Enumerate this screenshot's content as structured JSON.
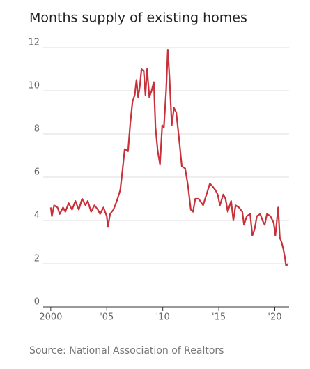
{
  "chart_data": {
    "type": "line",
    "title": "Months supply of existing homes",
    "source": "Source: National Association of Realtors",
    "x": [
      2000.0,
      2000.1,
      2000.3,
      2000.6,
      2000.8,
      2001.1,
      2001.3,
      2001.6,
      2001.9,
      2002.2,
      2002.5,
      2002.8,
      2003.1,
      2003.3,
      2003.6,
      2003.9,
      2004.2,
      2004.4,
      2004.7,
      2005.0,
      2005.1,
      2005.3,
      2005.6,
      2005.9,
      2006.2,
      2006.4,
      2006.6,
      2006.9,
      2007.1,
      2007.3,
      2007.5,
      2007.65,
      2007.8,
      2007.95,
      2008.1,
      2008.3,
      2008.45,
      2008.6,
      2008.8,
      2009.0,
      2009.2,
      2009.35,
      2009.55,
      2009.75,
      2009.95,
      2010.1,
      2010.3,
      2010.45,
      2010.6,
      2010.8,
      2011.0,
      2011.2,
      2011.45,
      2011.7,
      2012.0,
      2012.25,
      2012.5,
      2012.7,
      2012.9,
      2013.2,
      2013.6,
      2013.9,
      2014.2,
      2014.4,
      2014.7,
      2014.9,
      2015.1,
      2015.4,
      2015.6,
      2015.8,
      2016.1,
      2016.3,
      2016.5,
      2016.8,
      2017.1,
      2017.25,
      2017.5,
      2017.8,
      2018.0,
      2018.2,
      2018.4,
      2018.7,
      2018.9,
      2019.1,
      2019.3,
      2019.6,
      2019.9,
      2020.05,
      2020.3,
      2020.45,
      2020.6,
      2020.75,
      2020.9,
      2021.0,
      2021.2
    ],
    "series": [
      {
        "name": "Months supply",
        "color": "#c8313a",
        "values": [
          4.6,
          4.2,
          4.7,
          4.6,
          4.3,
          4.6,
          4.4,
          4.8,
          4.5,
          4.9,
          4.5,
          5.0,
          4.7,
          4.9,
          4.4,
          4.7,
          4.5,
          4.3,
          4.6,
          4.2,
          3.7,
          4.3,
          4.5,
          4.9,
          5.4,
          6.3,
          7.3,
          7.2,
          8.5,
          9.5,
          9.8,
          10.5,
          9.7,
          10.2,
          11.0,
          10.9,
          9.8,
          11.0,
          9.7,
          10.0,
          10.4,
          8.3,
          7.2,
          6.6,
          8.4,
          8.3,
          10.0,
          11.9,
          10.6,
          8.4,
          9.2,
          9.0,
          7.8,
          6.5,
          6.4,
          5.6,
          4.5,
          4.4,
          5.0,
          5.0,
          4.7,
          5.2,
          5.7,
          5.6,
          5.4,
          5.2,
          4.7,
          5.2,
          5.0,
          4.4,
          4.9,
          4.0,
          4.7,
          4.6,
          4.4,
          3.8,
          4.2,
          4.3,
          3.3,
          3.6,
          4.2,
          4.3,
          4.0,
          3.8,
          4.3,
          4.2,
          3.9,
          3.3,
          4.6,
          3.2,
          3.0,
          2.7,
          2.3,
          1.9,
          2.0
        ]
      }
    ],
    "xlim": [
      1999.2,
      2021.4
    ],
    "xticks": [
      {
        "value": 2000,
        "label": "2000"
      },
      {
        "value": 2005,
        "label": "'05"
      },
      {
        "value": 2010,
        "label": "'10"
      },
      {
        "value": 2015,
        "label": "'15"
      },
      {
        "value": 2020,
        "label": "'20"
      }
    ],
    "ylim": [
      0,
      12
    ],
    "yticks": [
      0,
      2,
      4,
      6,
      8,
      10,
      12
    ],
    "grid": true
  }
}
